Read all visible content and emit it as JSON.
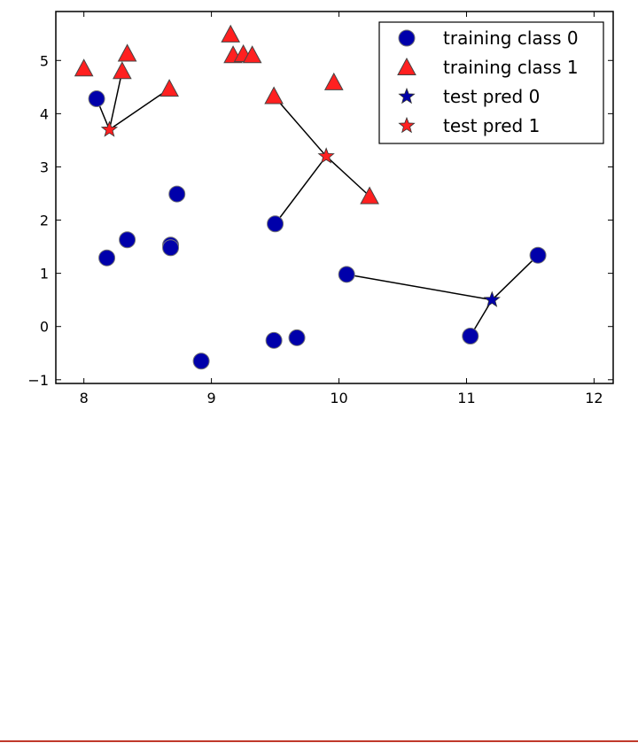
{
  "chart_data": {
    "type": "scatter",
    "title": "",
    "xlabel": "",
    "ylabel": "",
    "xlim": [
      7.78,
      12.15
    ],
    "ylim": [
      -1.07,
      5.92
    ],
    "xticks": [
      8,
      9,
      10,
      11,
      12
    ],
    "yticks": [
      -1,
      0,
      1,
      2,
      3,
      4,
      5
    ],
    "grid": false,
    "legend_position": "top-right",
    "series": [
      {
        "name": "training class 0",
        "marker": "circle",
        "color": "#0000aa",
        "x": [
          8.1,
          8.18,
          8.34,
          8.68,
          8.68,
          8.73,
          8.92,
          9.5,
          9.49,
          9.67,
          10.06,
          11.03,
          11.56
        ],
        "y": [
          4.28,
          1.29,
          1.63,
          1.53,
          1.48,
          2.49,
          -0.65,
          1.93,
          -0.26,
          -0.21,
          0.98,
          -0.18,
          1.34
        ]
      },
      {
        "name": "training class 1",
        "marker": "triangle",
        "color": "#ff2020",
        "x": [
          8.0,
          8.3,
          8.34,
          8.67,
          9.15,
          9.17,
          9.25,
          9.32,
          9.49,
          9.96,
          10.24
        ],
        "y": [
          4.85,
          4.8,
          5.13,
          4.47,
          5.49,
          5.1,
          5.12,
          5.1,
          4.33,
          4.59,
          2.45
        ]
      },
      {
        "name": "test pred 0",
        "marker": "star",
        "color": "#0000aa",
        "x": [
          11.2
        ],
        "y": [
          0.5
        ]
      },
      {
        "name": "test pred 1",
        "marker": "star",
        "color": "#ff2020",
        "x": [
          8.2,
          9.9
        ],
        "y": [
          3.7,
          3.2
        ]
      }
    ],
    "neighbor_lines": [
      {
        "from": [
          8.2,
          3.7
        ],
        "to": [
          8.1,
          4.28
        ]
      },
      {
        "from": [
          8.2,
          3.7
        ],
        "to": [
          8.3,
          4.8
        ]
      },
      {
        "from": [
          8.2,
          3.7
        ],
        "to": [
          8.67,
          4.47
        ]
      },
      {
        "from": [
          9.9,
          3.2
        ],
        "to": [
          9.49,
          4.33
        ]
      },
      {
        "from": [
          9.9,
          3.2
        ],
        "to": [
          9.5,
          1.93
        ]
      },
      {
        "from": [
          9.9,
          3.2
        ],
        "to": [
          10.24,
          2.45
        ]
      },
      {
        "from": [
          11.2,
          0.5
        ],
        "to": [
          10.06,
          0.98
        ]
      },
      {
        "from": [
          11.2,
          0.5
        ],
        "to": [
          11.03,
          -0.18
        ]
      },
      {
        "from": [
          11.2,
          0.5
        ],
        "to": [
          11.56,
          1.34
        ]
      }
    ]
  }
}
